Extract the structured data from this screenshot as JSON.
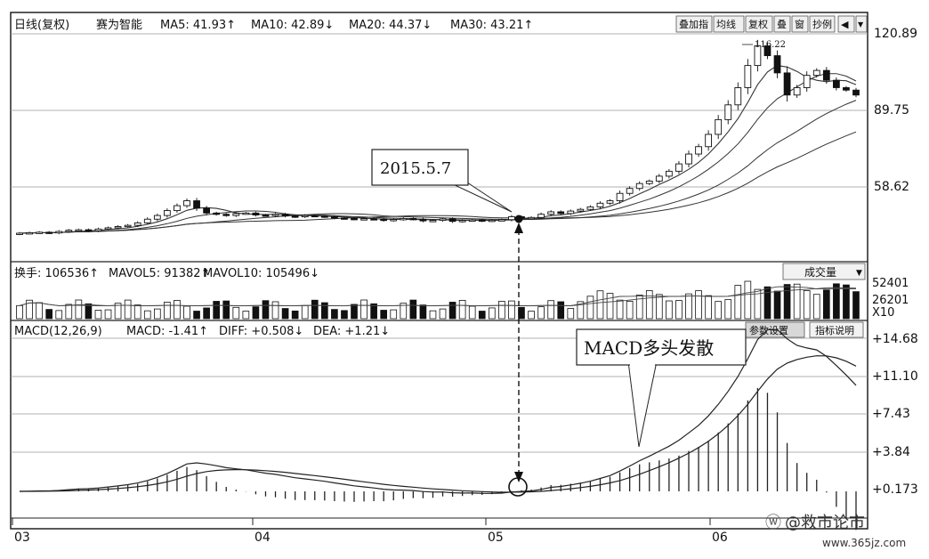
{
  "header": {
    "title_label": "日线(复权)",
    "stock_name": "赛为智能",
    "ma5": "MA5: 41.93↑",
    "ma10": "MA10: 42.89↓",
    "ma20": "MA20: 44.37↓",
    "ma30": "MA30: 43.21↑",
    "buttons": [
      "叠加指",
      "均线",
      "复权",
      "叠",
      "窗",
      "抄例"
    ],
    "icon_names": [
      "prev-arrow-icon",
      "dropdown-icon"
    ]
  },
  "price_axis": [
    "120.89",
    "89.75",
    "58.62"
  ],
  "volume_header": {
    "label": "换手: 106536↑",
    "mavol5": "MAVOL5: 91382↑",
    "mavol10": "MAVOL10: 105496↓",
    "dropdown": "成交量",
    "axis": [
      "52401",
      "26201",
      "X10"
    ]
  },
  "macd_header": {
    "label": "MACD(12,26,9)",
    "macd": "MACD: -1.41↑",
    "diff": "DIFF: +0.508↓",
    "dea": "DEA: +1.21↓",
    "buttons": [
      "参数设置",
      "指标说明"
    ],
    "axis": [
      "+14.68",
      "+11.10",
      "+7.43",
      "+3.84",
      "+0.173"
    ]
  },
  "x_axis": [
    "03",
    "04",
    "05",
    "06"
  ],
  "annotations": {
    "date_box": "2015.5.7",
    "peak_label": "116.22",
    "macd_box": "MACD多头发散"
  },
  "watermark": {
    "name": "@救市论市",
    "url": "www.365jz.com"
  },
  "chart_data": {
    "type": "candlestick",
    "x_ticks": [
      "03",
      "04",
      "05",
      "06"
    ],
    "price_axis_ticks": [
      120.89,
      89.75,
      58.62
    ],
    "peak_price": 116.22,
    "highlight_date": "2015.5.7",
    "closes": [
      39.8,
      40,
      40.2,
      39.9,
      40.5,
      41,
      41.2,
      40.8,
      41.5,
      42,
      42.5,
      43,
      44,
      45.5,
      47,
      49,
      51,
      53,
      50,
      48,
      47.5,
      47,
      47.8,
      48,
      47.2,
      47,
      47.5,
      46.8,
      46.5,
      47,
      46.8,
      46.5,
      46,
      45.8,
      45.5,
      45.7,
      45.5,
      45,
      45.4,
      45.8,
      45.5,
      44.8,
      45,
      45.6,
      44.6,
      45,
      45.2,
      44.8,
      45.1,
      45.3,
      46.5,
      46,
      46.2,
      47.5,
      48.5,
      47.8,
      48.8,
      49.5,
      50.5,
      52,
      53,
      56,
      58,
      60,
      61,
      63,
      65,
      68,
      72,
      75,
      80,
      86,
      92,
      99,
      108,
      116,
      112,
      105,
      96,
      99,
      104,
      106,
      102,
      99,
      98,
      96
    ],
    "ma_lines": [
      "MA5",
      "MA10",
      "MA20",
      "MA30"
    ],
    "volume_axis_ticks": [
      52401,
      26201
    ],
    "macd_axis_ticks": [
      14.68,
      11.1,
      7.43,
      3.84,
      0.173
    ]
  },
  "colors": {
    "up": "#ffffff",
    "down": "#111111",
    "grid": "#888888",
    "line": "#222222"
  }
}
